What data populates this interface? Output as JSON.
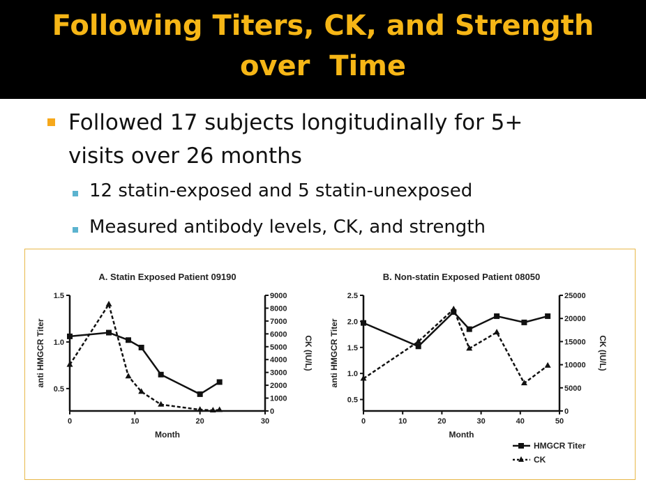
{
  "slide": {
    "title_line1": "Following Titers, CK, and Strength",
    "title_line2": "over  Time",
    "bullet": "Followed 17 subjects longitudinally for 5+ visits over 26 months",
    "sub_bullets": [
      "12 statin-exposed and 5 statin-unexposed",
      "Measured antibody levels, CK, and strength"
    ],
    "colors": {
      "title": "#F6B616",
      "bullet": "#F6A81B",
      "sub_bullet": "#5BB3CF"
    }
  },
  "chart_data": [
    {
      "type": "line",
      "title": "A. Statin Exposed Patient 09190",
      "xlabel": "Month",
      "ylabel": "anti HMGCR Titer",
      "y2label": "CK (IU/L)",
      "xlim": [
        0,
        30
      ],
      "ylim": [
        0.26,
        1.5
      ],
      "y2lim": [
        0,
        9000
      ],
      "xticks": [
        "0",
        "10",
        "20",
        "30"
      ],
      "yticks": [
        "0.5",
        "1.0",
        "1.5"
      ],
      "y2ticks": [
        "0",
        "1000",
        "2000",
        "3000",
        "4000",
        "5000",
        "6000",
        "7000",
        "8000",
        "9000"
      ],
      "series": [
        {
          "name": "HMGCR Titer",
          "axis": "left",
          "x": [
            0,
            6,
            9,
            11,
            14,
            20,
            23
          ],
          "y": [
            1.06,
            1.1,
            1.02,
            0.94,
            0.65,
            0.44,
            0.57
          ]
        },
        {
          "name": "CK",
          "axis": "right",
          "x": [
            0,
            6,
            9,
            11,
            14,
            20,
            22,
            23
          ],
          "y": [
            3600,
            8300,
            2700,
            1500,
            500,
            100,
            50,
            80
          ]
        }
      ]
    },
    {
      "type": "line",
      "title": "B. Non-statin Exposed Patient 08050",
      "xlabel": "Month",
      "ylabel": "anti HMGCR Titer",
      "y2label": "CK (IU/L)",
      "xlim": [
        0,
        50
      ],
      "ylim": [
        0.28,
        2.5
      ],
      "y2lim": [
        0,
        25000
      ],
      "xticks": [
        "0",
        "10",
        "20",
        "30",
        "40",
        "50"
      ],
      "yticks": [
        "0.5",
        "1.0",
        "1.5",
        "2.0",
        "2.5"
      ],
      "y2ticks": [
        "0",
        "5000",
        "10000",
        "15000",
        "20000",
        "25000"
      ],
      "legend": [
        "HMGCR Titer",
        "CK"
      ],
      "legend_position": "bottom-right",
      "series": [
        {
          "name": "HMGCR Titer",
          "axis": "left",
          "x": [
            0,
            14,
            23,
            27,
            34,
            41,
            47
          ],
          "y": [
            1.97,
            1.52,
            2.18,
            1.85,
            2.1,
            1.98,
            2.1
          ]
        },
        {
          "name": "CK",
          "axis": "right",
          "x": [
            0,
            14,
            23,
            27,
            34,
            41,
            47
          ],
          "y": [
            7000,
            15000,
            22000,
            13500,
            17000,
            6000,
            9800
          ]
        }
      ]
    }
  ]
}
